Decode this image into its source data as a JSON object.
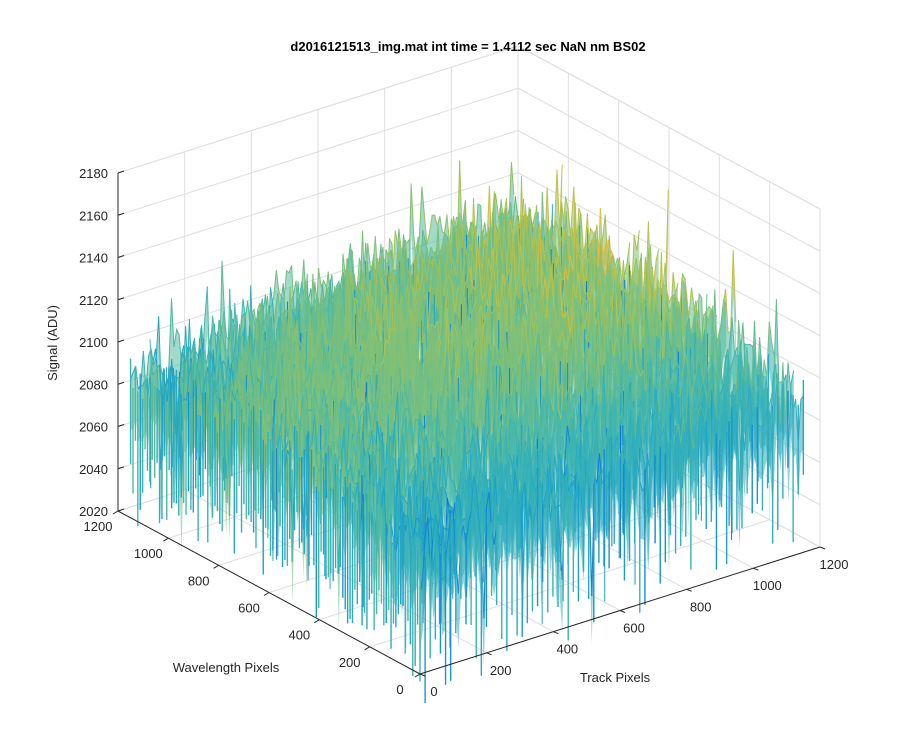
{
  "chart_data": {
    "type": "surface",
    "title": "d2016121513_img.mat int time = 1.4112 sec  NaN nm BS02",
    "xlabel": "Track Pixels",
    "ylabel": "Wavelength Pixels",
    "zlabel": "Signal (ADU)",
    "xlim": [
      0,
      1200
    ],
    "ylim": [
      0,
      1200
    ],
    "zlim": [
      2020,
      2180
    ],
    "xticks": [
      "0",
      "200",
      "400",
      "600",
      "800",
      "1000",
      "1200"
    ],
    "yticks": [
      "0",
      "200",
      "400",
      "600",
      "800",
      "1000",
      "1200"
    ],
    "zticks": [
      "2020",
      "2040",
      "2060",
      "2080",
      "2100",
      "2120",
      "2140",
      "2160",
      "2180"
    ],
    "grid": true,
    "colormap": [
      "#0a72d8",
      "#1ea3c8",
      "#3fb6b0",
      "#7cc07a",
      "#b7c24a",
      "#f0b93a"
    ],
    "surface_profile": {
      "track_pixels": [
        0,
        200,
        400,
        600,
        800,
        1000,
        1150
      ],
      "wavelength_pixels": [
        0,
        200,
        400,
        600,
        800,
        1000,
        1150
      ],
      "mean_signal_note_free_values": [
        [
          2080,
          2083,
          2086,
          2089,
          2092,
          2094,
          2095
        ],
        [
          2088,
          2091,
          2095,
          2098,
          2101,
          2103,
          2104
        ],
        [
          2094,
          2098,
          2102,
          2106,
          2109,
          2111,
          2112
        ],
        [
          2097,
          2102,
          2106,
          2110,
          2113,
          2115,
          2116
        ],
        [
          2096,
          2101,
          2106,
          2110,
          2113,
          2115,
          2116
        ],
        [
          2091,
          2097,
          2102,
          2106,
          2109,
          2111,
          2112
        ],
        [
          2084,
          2090,
          2095,
          2099,
          2102,
          2104,
          2105
        ]
      ]
    }
  }
}
